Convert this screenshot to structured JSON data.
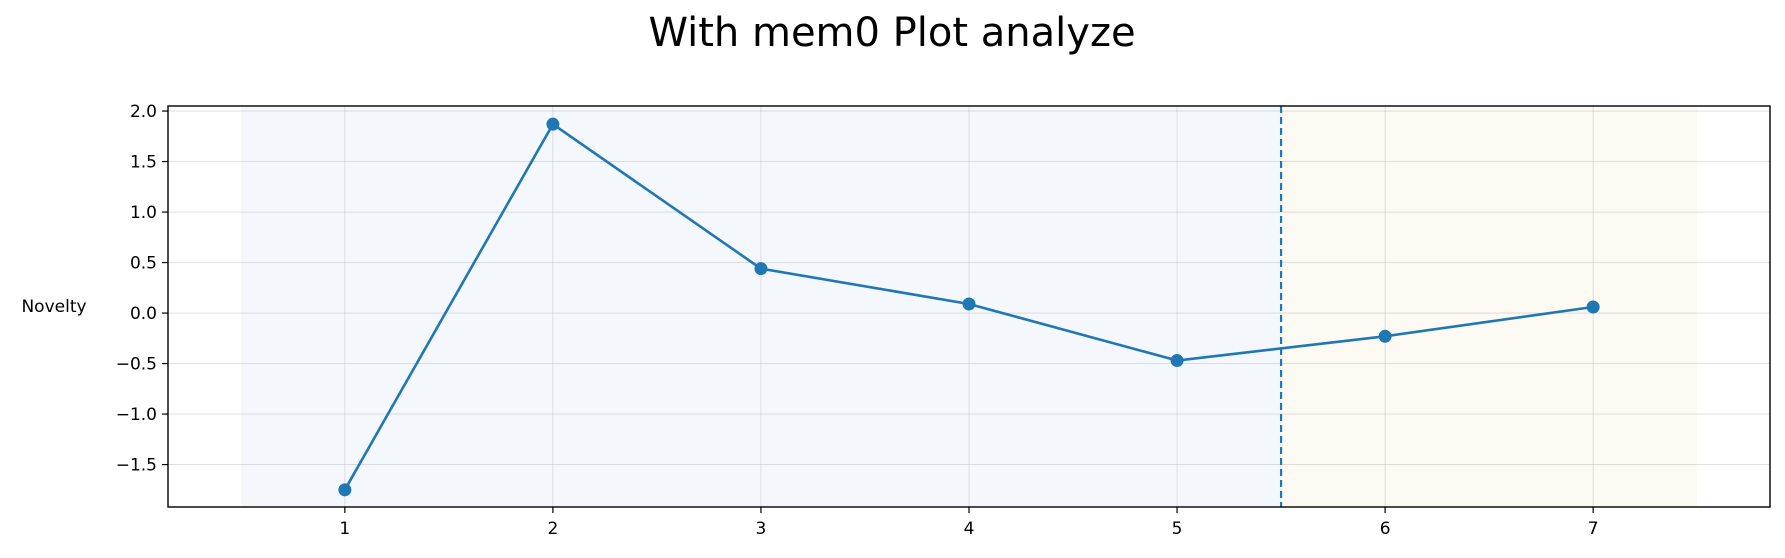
{
  "chart_data": {
    "type": "line",
    "title": "With mem0 Plot analyze",
    "xlabel": "",
    "ylabel": "Novelty",
    "x": [
      1,
      2,
      3,
      4,
      5,
      6,
      7
    ],
    "xlim": [
      0.15,
      7.85
    ],
    "ylim": [
      -1.92,
      2.05
    ],
    "xticks": [
      "1",
      "2",
      "3",
      "4",
      "5",
      "6",
      "7"
    ],
    "yticks": [
      "2.0",
      "1.5",
      "1.0",
      "0.5",
      "0.0",
      "−0.5",
      "−1.0",
      "−1.5"
    ],
    "ytick_values": [
      2.0,
      1.5,
      1.0,
      0.5,
      0.0,
      -0.5,
      -1.0,
      -1.5
    ],
    "series": [
      {
        "values": [
          -1.75,
          1.87,
          0.44,
          0.09,
          -0.47,
          -0.23,
          0.06
        ],
        "color": "#1f77b4",
        "marker": "circle"
      }
    ],
    "regions": [
      {
        "from": 0.5,
        "to": 5.5,
        "color": "#f4f8fc"
      },
      {
        "from": 5.5,
        "to": 7.5,
        "color": "#fdf9f3"
      }
    ],
    "vline": {
      "x": 5.5,
      "color": "#1f77b4",
      "style": "dashed"
    },
    "grid": true,
    "legend": "none"
  }
}
